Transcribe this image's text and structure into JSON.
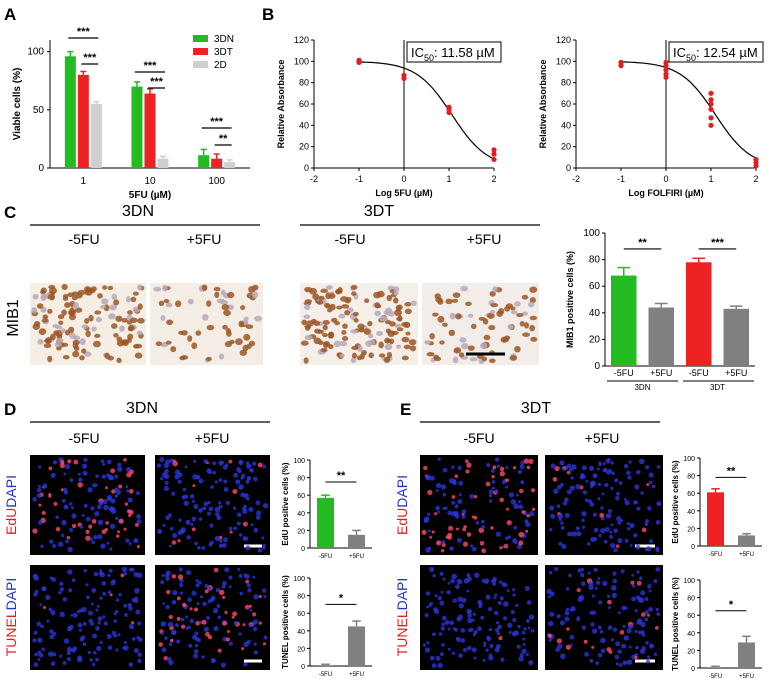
{
  "panels": {
    "A": "A",
    "B": "B",
    "C": "C",
    "D": "D",
    "E": "E"
  },
  "colors": {
    "green": "#22bb22",
    "red": "#ee2222",
    "gray": "#cfcfcf",
    "darkgray": "#808080",
    "dose": "#e02020"
  },
  "chart_data": [
    {
      "id": "A",
      "type": "bar",
      "categories": [
        "1",
        "10",
        "100"
      ],
      "series": [
        {
          "name": "3DN",
          "values": [
            96,
            70,
            11
          ],
          "errors": [
            4,
            4,
            5
          ]
        },
        {
          "name": "3DT",
          "values": [
            80,
            64,
            8
          ],
          "errors": [
            3,
            4,
            4
          ]
        },
        {
          "name": "2D",
          "values": [
            55,
            8,
            5
          ],
          "errors": [
            2,
            2,
            2
          ]
        }
      ],
      "xlabel": "5FU (µM)",
      "ylabel": "Viable cells (%)",
      "ylim": [
        0,
        110
      ],
      "yticks": [
        "0",
        "50",
        "100"
      ],
      "legend": "top-right",
      "significance": [
        "***",
        "***",
        "***",
        "***",
        "***",
        "**"
      ]
    },
    {
      "id": "B1",
      "type": "scatter",
      "xlabel": "Log 5FU (µM)",
      "ylabel": "Relative Absorbance",
      "xlim": [
        -2,
        2
      ],
      "ylim": [
        0,
        120
      ],
      "xticks": [
        "-2",
        "-1",
        "0",
        "1",
        "2"
      ],
      "yticks": [
        "0",
        "20",
        "40",
        "60",
        "80",
        "100",
        "120"
      ],
      "ic50_label": "11.58",
      "ic50_text": "IC",
      "ic50_sub": "50",
      "ic50_unit": ": 11.58 µM",
      "points": [
        [
          -1,
          99
        ],
        [
          -1,
          101
        ],
        [
          0,
          84
        ],
        [
          0,
          87
        ],
        [
          1,
          52
        ],
        [
          1,
          55
        ],
        [
          1,
          57
        ],
        [
          2,
          8
        ],
        [
          2,
          13
        ],
        [
          2,
          17
        ]
      ],
      "curve_log_ic50": 1.0637
    },
    {
      "id": "B2",
      "type": "scatter",
      "xlabel": "Log FOLFIRI (µM)",
      "ylabel": "Relative Absorbance",
      "xlim": [
        -2,
        2
      ],
      "ylim": [
        0,
        120
      ],
      "xticks": [
        "-2",
        "-1",
        "0",
        "1",
        "2"
      ],
      "yticks": [
        "0",
        "20",
        "40",
        "60",
        "80",
        "100",
        "120"
      ],
      "ic50_text": "IC",
      "ic50_sub": "50",
      "ic50_unit": ": 12.54 µM",
      "points": [
        [
          -1,
          96
        ],
        [
          -1,
          99
        ],
        [
          0,
          85
        ],
        [
          0,
          88
        ],
        [
          0,
          92
        ],
        [
          0,
          96
        ],
        [
          0,
          99
        ],
        [
          1,
          40
        ],
        [
          1,
          47
        ],
        [
          1,
          55
        ],
        [
          1,
          60
        ],
        [
          1,
          64
        ],
        [
          1,
          70
        ],
        [
          2,
          2
        ],
        [
          2,
          5
        ],
        [
          2,
          8
        ]
      ],
      "curve_log_ic50": 1.0983
    },
    {
      "id": "C",
      "type": "bar",
      "categories": [
        "-5FU",
        "+5FU",
        "-5FU",
        "+5FU"
      ],
      "groups": [
        "3DN",
        "3DT"
      ],
      "values": [
        68,
        44,
        78,
        43
      ],
      "errors": [
        6,
        3,
        3,
        2
      ],
      "ylabel": "MIB1 positive cells (%)",
      "ylim": [
        0,
        100
      ],
      "yticks": [
        "0",
        "20",
        "40",
        "60",
        "80",
        "100"
      ],
      "significance": [
        "**",
        "***"
      ]
    },
    {
      "id": "D1",
      "type": "bar",
      "categories": [
        "-5FU",
        "+5FU"
      ],
      "values": [
        57,
        15
      ],
      "errors": [
        3,
        5
      ],
      "ylabel": "EdU positive cells (%)",
      "ylim": [
        0,
        100
      ],
      "yticks": [
        "0",
        "20",
        "40",
        "60",
        "80",
        "100"
      ],
      "significance": [
        "**"
      ]
    },
    {
      "id": "D2",
      "type": "bar",
      "categories": [
        "-5FU",
        "+5FU"
      ],
      "values": [
        1,
        45
      ],
      "errors": [
        1,
        6
      ],
      "ylabel": "TUNEL positive cells (%)",
      "ylim": [
        0,
        100
      ],
      "yticks": [
        "0",
        "20",
        "40",
        "60",
        "80",
        "100"
      ],
      "significance": [
        "*"
      ]
    },
    {
      "id": "E1",
      "type": "bar",
      "categories": [
        "-5FU",
        "+5FU"
      ],
      "values": [
        61,
        12
      ],
      "errors": [
        4,
        2
      ],
      "ylabel": "EdU positive cells (%)",
      "ylim": [
        0,
        100
      ],
      "yticks": [
        "0",
        "20",
        "40",
        "60",
        "80",
        "100"
      ],
      "significance": [
        "**"
      ]
    },
    {
      "id": "E2",
      "type": "bar",
      "categories": [
        "-5FU",
        "+5FU"
      ],
      "values": [
        1,
        29
      ],
      "errors": [
        1,
        7
      ],
      "ylabel": "TUNEL positive cells (%)",
      "ylim": [
        0,
        100
      ],
      "yticks": [
        "0",
        "20",
        "40",
        "60",
        "80",
        "100"
      ],
      "significance": [
        "*"
      ]
    }
  ],
  "images": {
    "C_title_3DN": "3DN",
    "C_title_3DT": "3DT",
    "C_minus": "-5FU",
    "C_plus": "+5FU",
    "C_stain": "MIB1",
    "D_title": "3DN",
    "E_title": "3DT",
    "D_minus": "-5FU",
    "D_plus": "+5FU",
    "E_minus": "-5FU",
    "E_plus": "+5FU",
    "edu": "EdU",
    "dapi": "DAPI",
    "tunel": "TUNEL"
  }
}
